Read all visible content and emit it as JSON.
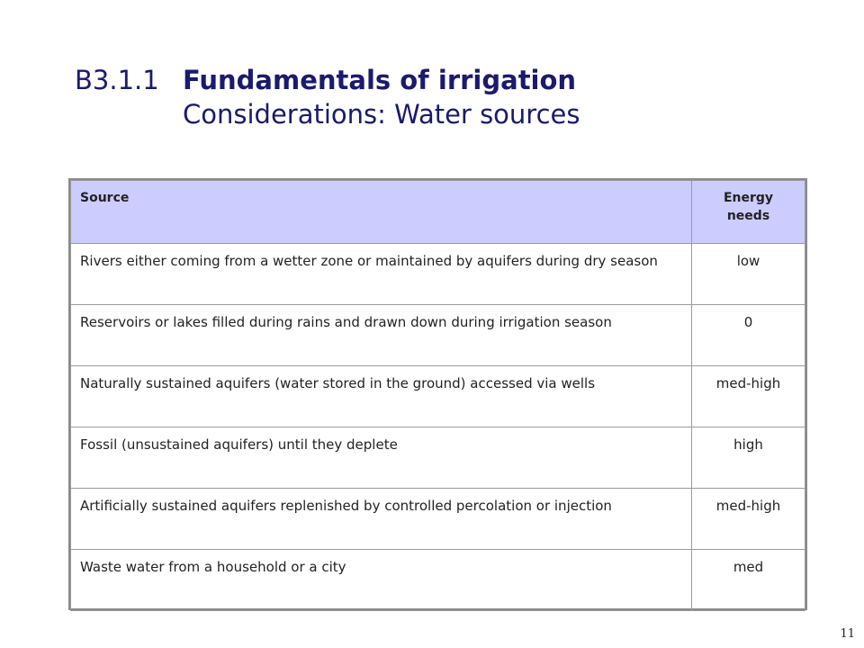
{
  "slide": {
    "section_number": "B3.1.1",
    "title": "Fundamentals of irrigation",
    "subtitle": "Considerations: Water sources",
    "page_number": "11"
  },
  "table": {
    "headers": {
      "source": "Source",
      "energy": "Energy needs"
    },
    "rows": [
      {
        "source": "Rivers either coming from a wetter zone or maintained by aquifers during dry season",
        "energy": "low"
      },
      {
        "source": "Reservoirs or lakes filled during rains and drawn down during irrigation season",
        "energy": "0"
      },
      {
        "source": "Naturally sustained aquifers (water stored in the ground) accessed via wells",
        "energy": "med-high"
      },
      {
        "source": "Fossil (unsustained aquifers) until they deplete",
        "energy": "high"
      },
      {
        "source": "Artificially sustained aquifers replenished by controlled percolation or injection",
        "energy": "med-high"
      },
      {
        "source": "Waste water from a household or a city",
        "energy": "med"
      }
    ]
  },
  "colors": {
    "title": "#1a1a6e",
    "header_background": "#ccccff",
    "table_border": "#8a8a8a"
  }
}
